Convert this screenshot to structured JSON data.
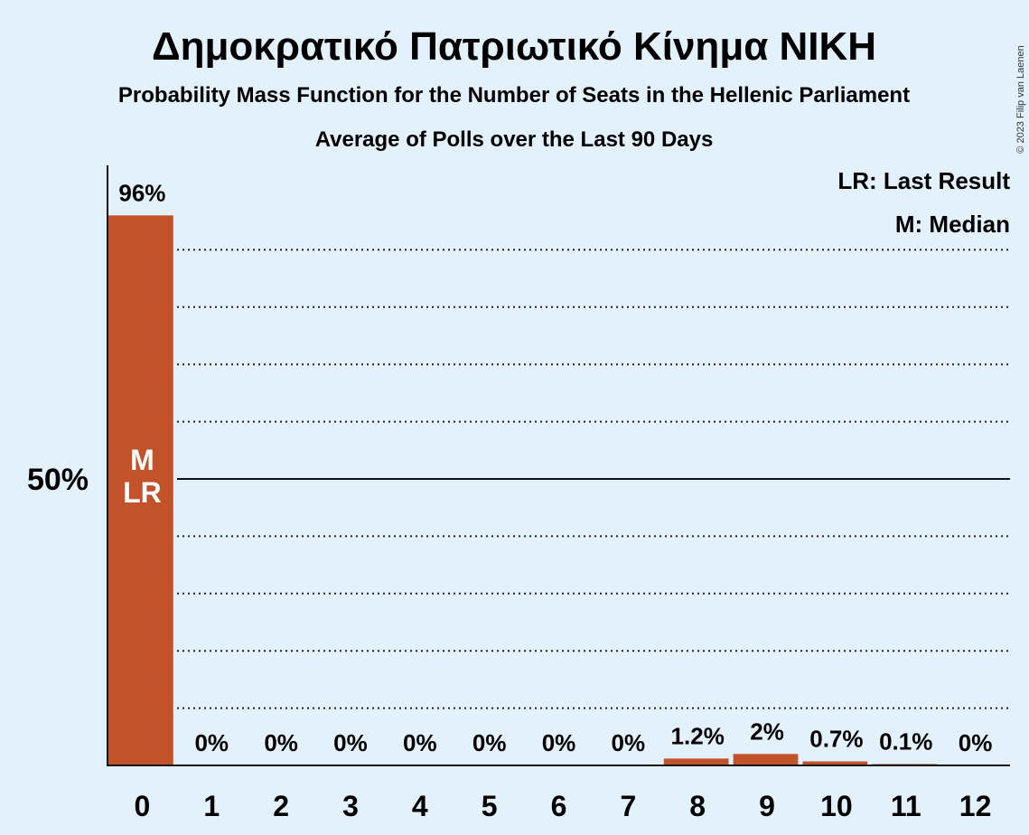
{
  "header": {
    "title": "Δημοκρατικό Πατριωτικό Κίνημα ΝΙΚΗ",
    "subtitle1": "Probability Mass Function for the Number of Seats in the Hellenic Parliament",
    "subtitle2": "Average of Polls over the Last 90 Days",
    "copyright": "© 2023 Filip van Laenen"
  },
  "legend": {
    "last_result": "LR: Last Result",
    "median": "M: Median"
  },
  "colors": {
    "bar": "#c1522a",
    "background": "#e3f1fd",
    "axis": "#111111"
  },
  "chart_data": {
    "type": "bar",
    "categories": [
      "0",
      "1",
      "2",
      "3",
      "4",
      "5",
      "6",
      "7",
      "8",
      "9",
      "10",
      "11",
      "12"
    ],
    "values": [
      96,
      0,
      0,
      0,
      0,
      0,
      0,
      0,
      1.2,
      2,
      0.7,
      0.1,
      0
    ],
    "value_labels": [
      "96%",
      "0%",
      "0%",
      "0%",
      "0%",
      "0%",
      "0%",
      "0%",
      "1.2%",
      "2%",
      "0.7%",
      "0.1%",
      "0%"
    ],
    "ylim": [
      0,
      100
    ],
    "yticks": [
      {
        "value": 50,
        "label": "50%"
      }
    ],
    "minor_grid": [
      10,
      20,
      30,
      40,
      60,
      70,
      80,
      90
    ],
    "bar_annotations": [
      {
        "category": "0",
        "lines": [
          "M",
          "LR"
        ]
      }
    ],
    "legend_position": "top-right",
    "grid": true
  }
}
